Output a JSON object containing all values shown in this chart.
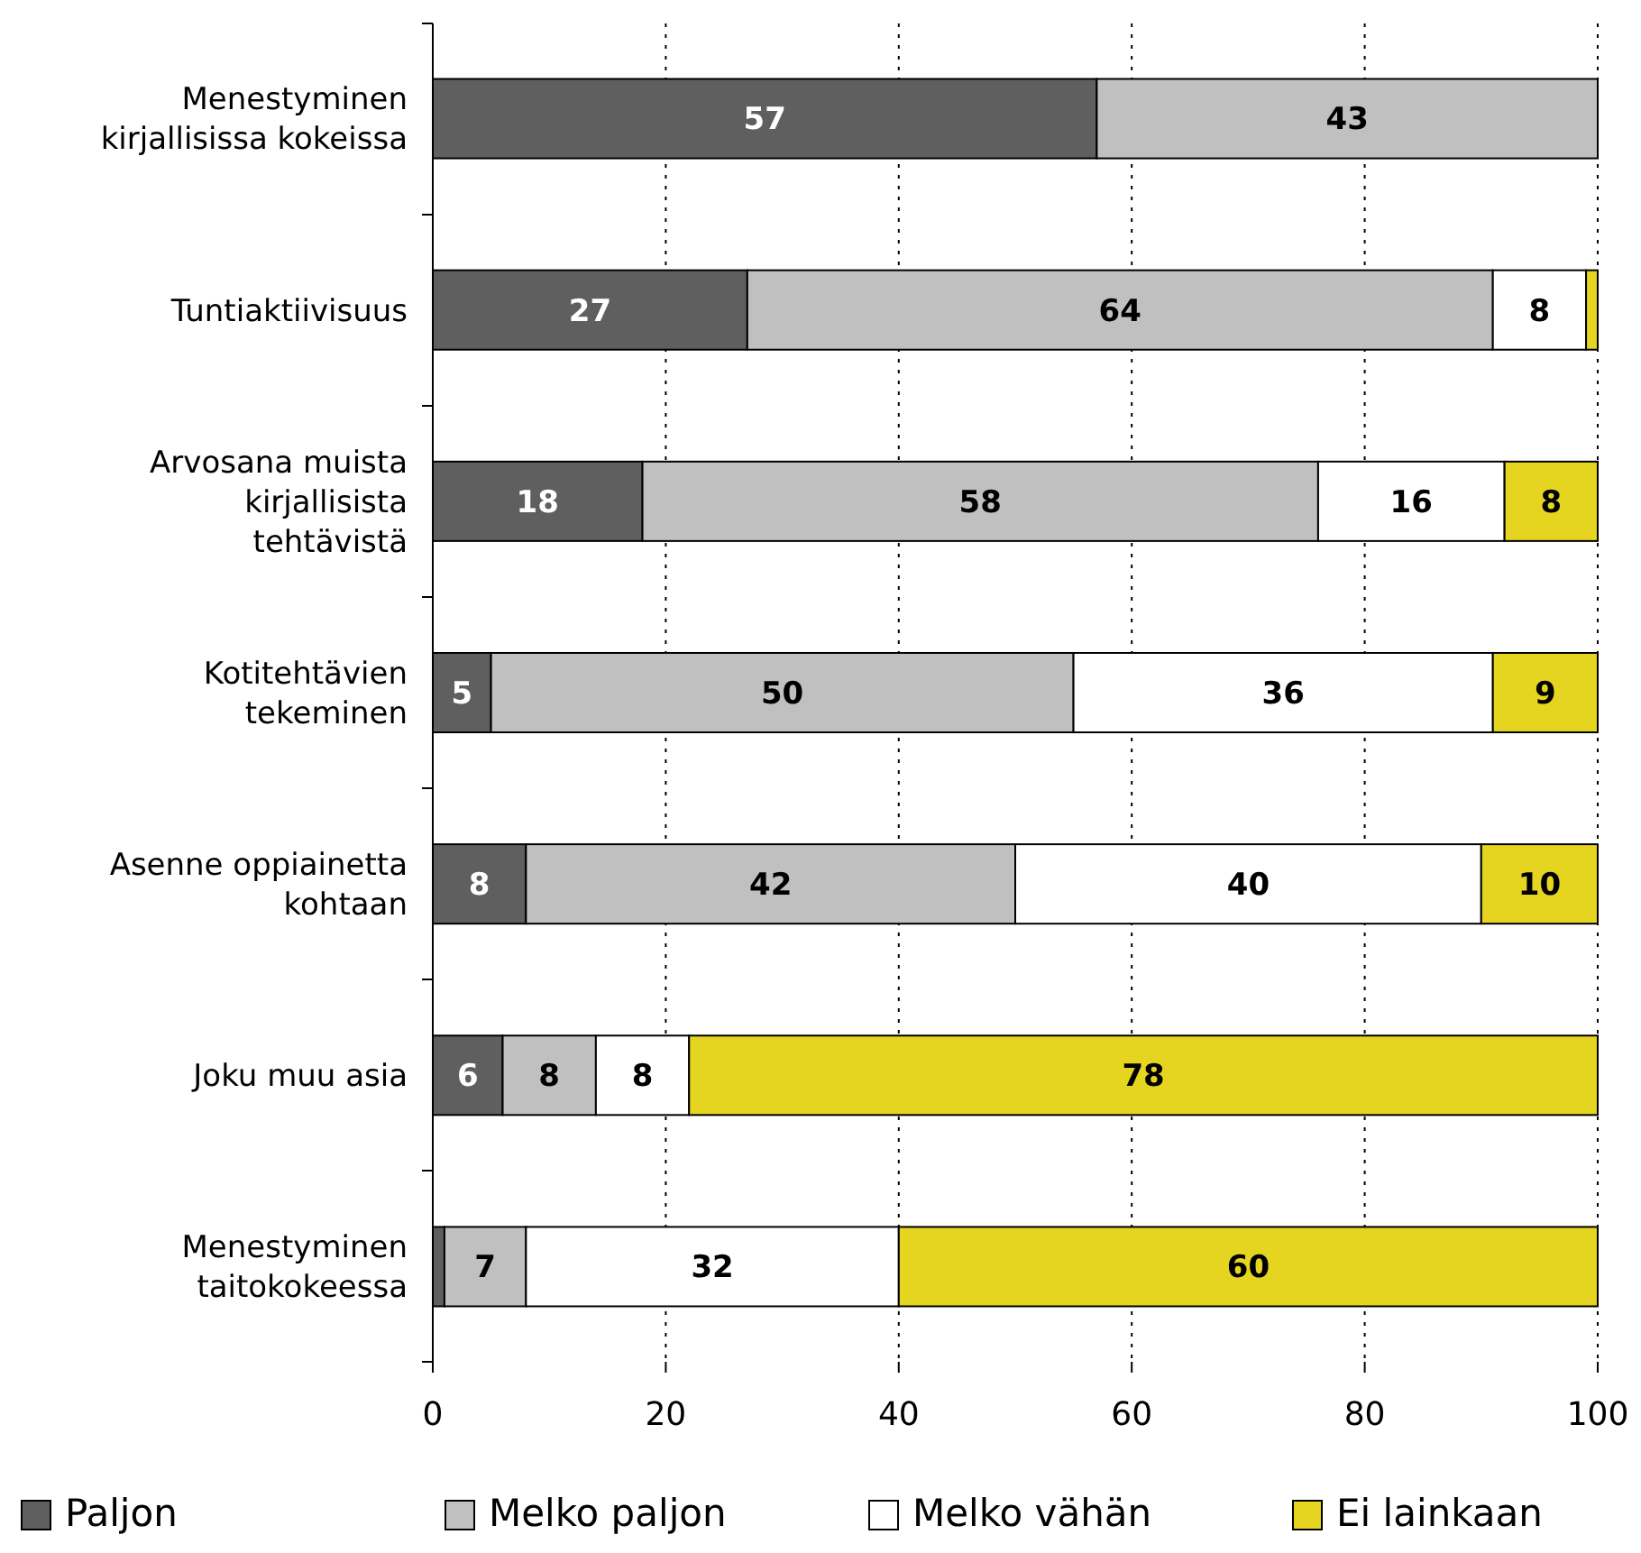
{
  "chart_data": {
    "type": "bar",
    "orientation": "horizontal",
    "stacked": true,
    "categories": [
      "Menestyminen\nkirjallisissa kokeissa",
      "Tuntiaktiivisuus",
      "Arvosana muista\nkirjallisista\ntehtävistä",
      "Kotitehtävien\ntekeminen",
      "Asenne oppiainetta\nkohtaan",
      "Joku muu asia",
      "Menestyminen\ntaitokokeessa"
    ],
    "series": [
      {
        "name": "Paljon",
        "color": "#5f5f5f",
        "values": [
          57,
          27,
          18,
          5,
          8,
          6,
          1
        ],
        "value_labels": [
          "57",
          "27",
          "18",
          "5",
          "8",
          "6",
          null
        ]
      },
      {
        "name": "Melko paljon",
        "color": "#c0c0c0",
        "values": [
          43,
          64,
          58,
          50,
          42,
          8,
          7
        ],
        "value_labels": [
          "43",
          "64",
          "58",
          "50",
          "42",
          "8",
          "7"
        ]
      },
      {
        "name": "Melko vähän",
        "color": "#ffffff",
        "values": [
          0,
          8,
          16,
          36,
          40,
          8,
          32
        ],
        "value_labels": [
          null,
          "8",
          "16",
          "36",
          "40",
          "8",
          "32"
        ]
      },
      {
        "name": "Ei lainkaan",
        "color": "#e5d420",
        "values": [
          0,
          1,
          8,
          9,
          10,
          78,
          60
        ],
        "value_labels": [
          null,
          null,
          "8",
          "9",
          "10",
          "78",
          "60"
        ]
      }
    ],
    "xlim": [
      0,
      100
    ],
    "xticks": [
      0,
      20,
      40,
      60,
      80,
      100
    ],
    "grid": "x",
    "legend": "bottom"
  }
}
